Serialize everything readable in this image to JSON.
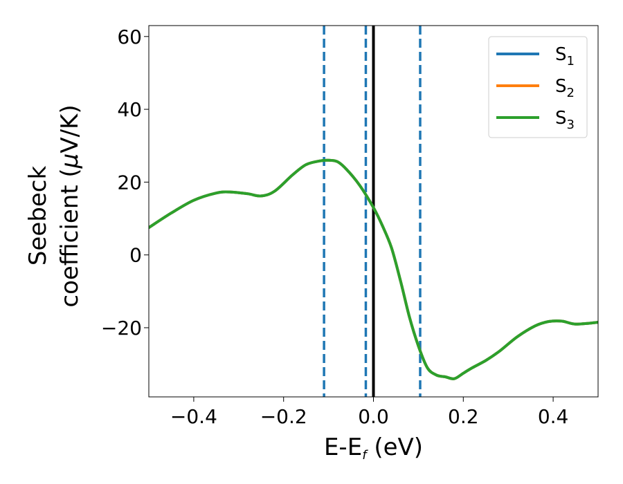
{
  "chart_data": {
    "type": "line",
    "xlabel": {
      "main": "E-E",
      "sub": "f",
      "unit": " (eV)"
    },
    "ylabel": {
      "line1": "Seebeck",
      "line2_text": "coefficient  (",
      "line2_mu": "μ",
      "line2_unit": "V/K)"
    },
    "xlim": [
      -0.5,
      0.5
    ],
    "ylim": [
      -39,
      63
    ],
    "xticks": [
      -0.4,
      -0.2,
      0.0,
      0.2,
      0.4
    ],
    "xtick_labels": [
      "−0.4",
      "−0.2",
      "0.0",
      "0.2",
      "0.4"
    ],
    "yticks": [
      -20,
      0,
      20,
      40,
      60
    ],
    "ytick_labels": [
      "−20",
      "0",
      "20",
      "40",
      "60"
    ],
    "grid": false,
    "legend_position": "top-right",
    "vertical_lines": [
      {
        "x": -0.11,
        "style": "dashed",
        "color": "#1f77b4"
      },
      {
        "x": -0.017,
        "style": "dashed",
        "color": "#1f77b4"
      },
      {
        "x": 0.0,
        "style": "solid",
        "color": "#000000"
      },
      {
        "x": 0.104,
        "style": "dashed",
        "color": "#1f77b4"
      }
    ],
    "series": [
      {
        "name": "S",
        "sub": "1",
        "color": "#1f77b4",
        "x": [
          -0.5,
          -0.45,
          -0.4,
          -0.35,
          -0.32,
          -0.28,
          -0.25,
          -0.22,
          -0.18,
          -0.15,
          -0.12,
          -0.1,
          -0.08,
          -0.06,
          -0.03,
          0.0,
          0.02,
          0.04,
          0.06,
          0.08,
          0.1,
          0.12,
          0.14,
          0.16,
          0.18,
          0.2,
          0.22,
          0.25,
          0.28,
          0.32,
          0.36,
          0.39,
          0.42,
          0.45,
          0.5
        ],
        "y": [
          7.5,
          11.5,
          15,
          17,
          17.3,
          16.8,
          16.2,
          17.5,
          22,
          24.8,
          25.8,
          26,
          25.6,
          23.5,
          19,
          13,
          8,
          2,
          -7,
          -17,
          -25,
          -31,
          -33,
          -33.5,
          -34,
          -32.5,
          -31,
          -29,
          -26.5,
          -22.5,
          -19.5,
          -18.3,
          -18.2,
          -19,
          -18.5
        ]
      },
      {
        "name": "S",
        "sub": "2",
        "color": "#ff7f0e",
        "x": [
          -0.5,
          -0.45,
          -0.4,
          -0.35,
          -0.32,
          -0.28,
          -0.25,
          -0.22,
          -0.18,
          -0.15,
          -0.12,
          -0.1,
          -0.08,
          -0.06,
          -0.03,
          0.0,
          0.02,
          0.04,
          0.06,
          0.08,
          0.1,
          0.12,
          0.14,
          0.16,
          0.18,
          0.2,
          0.22,
          0.25,
          0.28,
          0.32,
          0.36,
          0.39,
          0.42,
          0.45,
          0.5
        ],
        "y": [
          7.5,
          11.5,
          15,
          17,
          17.3,
          16.8,
          16.2,
          17.5,
          22,
          24.8,
          25.8,
          26,
          25.6,
          23.5,
          19,
          13,
          8,
          2,
          -7,
          -17,
          -25,
          -31,
          -33,
          -33.5,
          -34,
          -32.5,
          -31,
          -29,
          -26.5,
          -22.5,
          -19.5,
          -18.3,
          -18.2,
          -19,
          -18.5
        ]
      },
      {
        "name": "S",
        "sub": "3",
        "color": "#2ca02c",
        "x": [
          -0.5,
          -0.45,
          -0.4,
          -0.35,
          -0.32,
          -0.28,
          -0.25,
          -0.22,
          -0.18,
          -0.15,
          -0.12,
          -0.1,
          -0.08,
          -0.06,
          -0.03,
          0.0,
          0.02,
          0.04,
          0.06,
          0.08,
          0.1,
          0.12,
          0.14,
          0.16,
          0.18,
          0.2,
          0.22,
          0.25,
          0.28,
          0.32,
          0.36,
          0.39,
          0.42,
          0.45,
          0.5
        ],
        "y": [
          7.5,
          11.5,
          15,
          17,
          17.3,
          16.8,
          16.2,
          17.5,
          22,
          24.8,
          25.8,
          26,
          25.6,
          23.5,
          19,
          13,
          8,
          2,
          -7,
          -17,
          -25,
          -31,
          -33,
          -33.5,
          -34,
          -32.5,
          -31,
          -29,
          -26.5,
          -22.5,
          -19.5,
          -18.3,
          -18.2,
          -19,
          -18.5
        ]
      }
    ]
  }
}
